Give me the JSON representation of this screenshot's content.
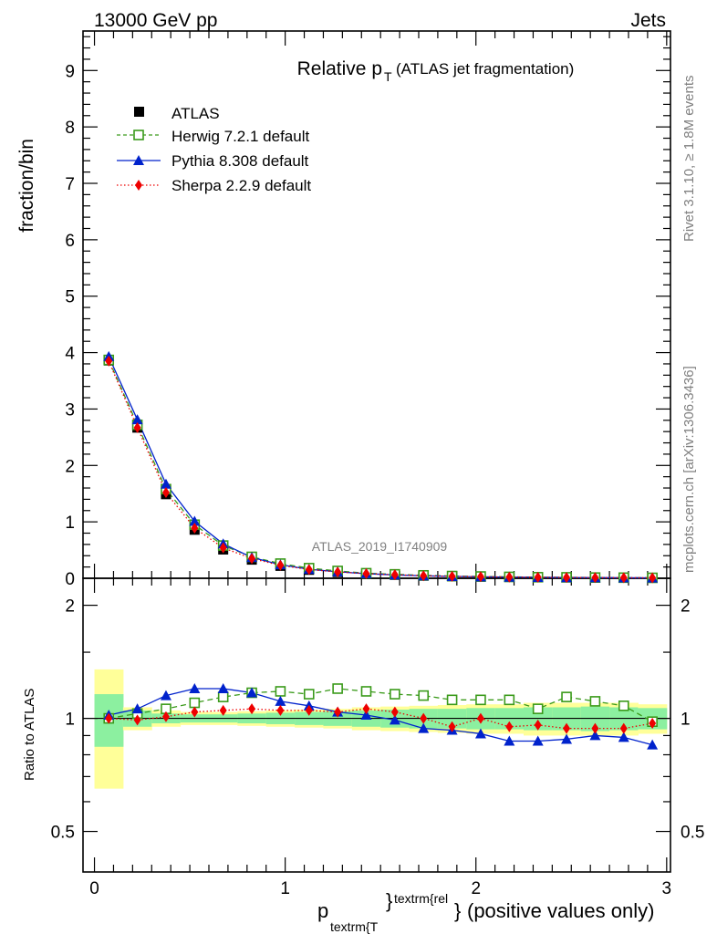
{
  "header": {
    "energy": "13000 GeV pp",
    "process": "Jets",
    "rivet": "Rivet 3.1.10, ≥ 1.8M events",
    "site": "mcplots.cern.ch [arXiv:1306.3436]",
    "analysis_id": "ATLAS_2019_I1740909"
  },
  "colors": {
    "atlas": "#000000",
    "herwig": "#3a9a1a",
    "pythia": "#0022cc",
    "sherpa": "#ee0000",
    "band_inner": "#8cf0a0",
    "band_outer": "#ffff99"
  },
  "chart_data": [
    {
      "type": "line",
      "title": "Relative p",
      "title_subscript": "T",
      "title_suffix": "(ATLAS jet fragmentation)",
      "ylabel": "fraction/bin",
      "ylim": [
        0,
        9.7
      ],
      "yticks": [
        "0",
        "1",
        "2",
        "3",
        "4",
        "5",
        "6",
        "7",
        "8",
        "9"
      ],
      "xlim": [
        -0.06,
        3.02
      ],
      "x": [
        0.075,
        0.225,
        0.375,
        0.525,
        0.675,
        0.825,
        0.975,
        1.125,
        1.275,
        1.425,
        1.575,
        1.725,
        1.875,
        2.025,
        2.175,
        2.325,
        2.475,
        2.625,
        2.775,
        2.925
      ],
      "legend": {
        "position": "top-left"
      },
      "series": [
        {
          "name": "ATLAS",
          "style": "markers",
          "values": [
            3.86,
            2.67,
            1.49,
            0.86,
            0.51,
            0.33,
            0.22,
            0.15,
            0.11,
            0.08,
            0.06,
            0.045,
            0.035,
            0.028,
            0.022,
            0.018,
            0.015,
            0.012,
            0.01,
            0.008
          ]
        },
        {
          "name": "Herwig 7.2.1 default",
          "style": "dashed-open-square",
          "values": [
            3.87,
            2.72,
            1.58,
            0.95,
            0.58,
            0.38,
            0.26,
            0.18,
            0.13,
            0.09,
            0.07,
            0.052,
            0.04,
            0.032,
            0.025,
            0.019,
            0.017,
            0.013,
            0.011,
            0.008
          ]
        },
        {
          "name": "Pythia 8.308 default",
          "style": "solid-triangle",
          "values": [
            3.93,
            2.81,
            1.67,
            1.01,
            0.61,
            0.37,
            0.24,
            0.16,
            0.115,
            0.082,
            0.06,
            0.044,
            0.033,
            0.026,
            0.02,
            0.016,
            0.013,
            0.011,
            0.009,
            0.007
          ]
        },
        {
          "name": "Sherpa 2.2.9 default",
          "style": "dotted-diamond",
          "values": [
            3.85,
            2.67,
            1.52,
            0.89,
            0.54,
            0.35,
            0.23,
            0.155,
            0.112,
            0.083,
            0.062,
            0.045,
            0.034,
            0.028,
            0.021,
            0.018,
            0.014,
            0.012,
            0.01,
            0.008
          ]
        }
      ]
    },
    {
      "type": "line",
      "ylabel": "Ratio to ATLAS",
      "xlabel_main": "p",
      "xlabel_sub": "textrm{T",
      "xlabel_sup": "textrm{rel",
      "xlabel_brace_sup": "}",
      "xlabel_brace": "}",
      "xlabel_suffix": "(positive values only)",
      "ylim": [
        0.39,
        2.36
      ],
      "yscale": "log",
      "yticks": [
        "0.5",
        "1",
        "2"
      ],
      "xticks": [
        "0",
        "1",
        "2",
        "3"
      ],
      "xlim": [
        -0.06,
        3.02
      ],
      "x": [
        0.075,
        0.225,
        0.375,
        0.525,
        0.675,
        0.825,
        0.975,
        1.125,
        1.275,
        1.425,
        1.575,
        1.725,
        1.875,
        2.025,
        2.175,
        2.325,
        2.475,
        2.625,
        2.775,
        2.925
      ],
      "band_inner": [
        0.16,
        0.05,
        0.03,
        0.025,
        0.025,
        0.03,
        0.035,
        0.04,
        0.045,
        0.05,
        0.055,
        0.06,
        0.06,
        0.065,
        0.065,
        0.07,
        0.07,
        0.075,
        0.07,
        0.065
      ],
      "band_outer": [
        0.35,
        0.07,
        0.05,
        0.04,
        0.04,
        0.045,
        0.05,
        0.055,
        0.06,
        0.07,
        0.075,
        0.08,
        0.085,
        0.09,
        0.09,
        0.1,
        0.1,
        0.1,
        0.1,
        0.09
      ],
      "reference_line": 1,
      "series": [
        {
          "name": "Herwig 7.2.1 default",
          "values": [
            1.0,
            1.03,
            1.06,
            1.1,
            1.14,
            1.17,
            1.18,
            1.16,
            1.2,
            1.18,
            1.16,
            1.15,
            1.12,
            1.12,
            1.12,
            1.06,
            1.14,
            1.11,
            1.08,
            0.98
          ]
        },
        {
          "name": "Pythia 8.308 default",
          "values": [
            1.02,
            1.06,
            1.15,
            1.2,
            1.2,
            1.17,
            1.11,
            1.08,
            1.04,
            1.02,
            0.99,
            0.94,
            0.93,
            0.91,
            0.87,
            0.87,
            0.88,
            0.9,
            0.89,
            0.85
          ]
        },
        {
          "name": "Sherpa 2.2.9 default",
          "values": [
            1.0,
            0.99,
            1.01,
            1.04,
            1.05,
            1.06,
            1.05,
            1.05,
            1.04,
            1.06,
            1.04,
            1.0,
            0.95,
            1.0,
            0.95,
            0.96,
            0.94,
            0.94,
            0.94,
            0.97
          ]
        }
      ]
    }
  ]
}
